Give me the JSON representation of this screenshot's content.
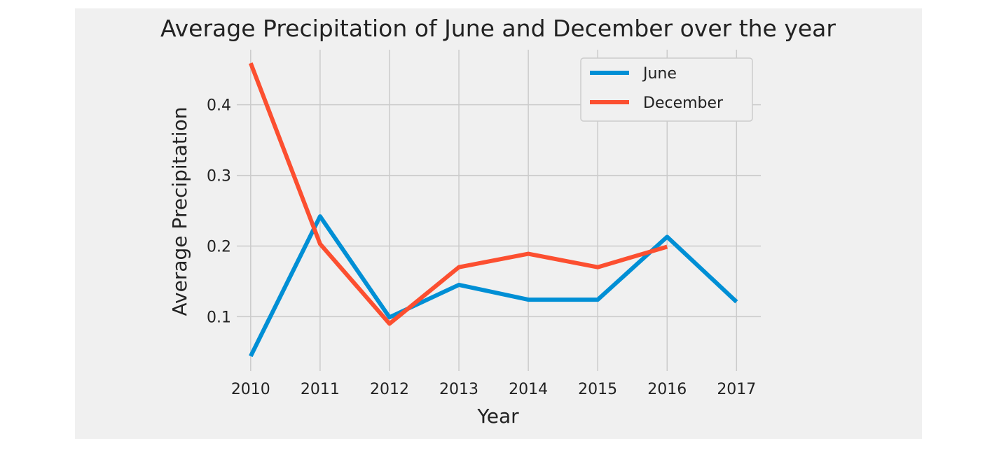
{
  "chart_data": {
    "type": "line",
    "title": "Average Precipitation of June and December over the year",
    "xlabel": "Year",
    "ylabel": "Average Precipitation",
    "x": [
      2010,
      2011,
      2012,
      2013,
      2014,
      2015,
      2016,
      2017
    ],
    "x_tick_labels": [
      "2010",
      "2011",
      "2012",
      "2013",
      "2014",
      "2015",
      "2016",
      "2017"
    ],
    "y_ticks": [
      0.1,
      0.2,
      0.3,
      0.4
    ],
    "y_tick_labels": [
      "0.1",
      "0.2",
      "0.3",
      "0.4"
    ],
    "xlim": [
      2009.8,
      2017.35
    ],
    "ylim": [
      0.023,
      0.478
    ],
    "grid": true,
    "legend_position": "top-right",
    "series": [
      {
        "name": "June",
        "color": "#008fd5",
        "x": [
          2010,
          2011,
          2012,
          2013,
          2014,
          2015,
          2016,
          2017
        ],
        "values": [
          0.044,
          0.242,
          0.099,
          0.145,
          0.124,
          0.124,
          0.213,
          0.121
        ]
      },
      {
        "name": "December",
        "color": "#fc4f30",
        "x": [
          2010,
          2011,
          2012,
          2013,
          2014,
          2015,
          2016
        ],
        "values": [
          0.459,
          0.203,
          0.09,
          0.17,
          0.189,
          0.17,
          0.199
        ]
      }
    ]
  }
}
